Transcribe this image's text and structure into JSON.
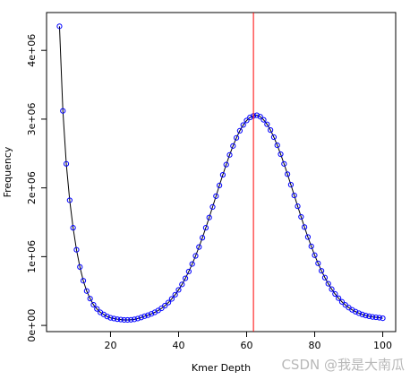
{
  "chart_data": {
    "type": "line",
    "x_label": "Kmer Depth",
    "y_label": "Frequency",
    "watermark": "CSDN @我是大南瓜",
    "x": [
      5,
      6,
      7,
      8,
      9,
      10,
      11,
      12,
      13,
      14,
      15,
      16,
      17,
      18,
      19,
      20,
      21,
      22,
      23,
      24,
      25,
      26,
      27,
      28,
      29,
      30,
      31,
      32,
      33,
      34,
      35,
      36,
      37,
      38,
      39,
      40,
      41,
      42,
      43,
      44,
      45,
      46,
      47,
      48,
      49,
      50,
      51,
      52,
      53,
      54,
      55,
      56,
      57,
      58,
      59,
      60,
      61,
      62,
      63,
      64,
      65,
      66,
      67,
      68,
      69,
      70,
      71,
      72,
      73,
      74,
      75,
      76,
      77,
      78,
      79,
      80,
      81,
      82,
      83,
      84,
      85,
      86,
      87,
      88,
      89,
      90,
      91,
      92,
      93,
      94,
      95,
      96,
      97,
      98,
      99,
      100
    ],
    "series": [
      {
        "color": "#000000",
        "marker_color": "#0000ff",
        "values": [
          4350000,
          3120000,
          2350000,
          1820000,
          1420000,
          1100000,
          850000,
          650000,
          500000,
          390000,
          300000,
          240000,
          190000,
          160000,
          130000,
          110000,
          100000,
          90000,
          85000,
          80000,
          80000,
          82000,
          88000,
          100000,
          115000,
          134000,
          149000,
          168000,
          190000,
          217000,
          249000,
          288000,
          333000,
          386000,
          447000,
          517000,
          596000,
          685000,
          784000,
          893000,
          1011000,
          1140000,
          1275000,
          1420000,
          1569000,
          1723000,
          1880000,
          2036000,
          2190000,
          2339000,
          2480000,
          2610000,
          2728000,
          2831000,
          2915000,
          2980000,
          3025000,
          3047000,
          3057000,
          3035000,
          2990000,
          2925000,
          2841000,
          2738000,
          2620000,
          2490000,
          2349000,
          2200000,
          2046000,
          1890000,
          1733000,
          1579000,
          1430000,
          1285000,
          1150000,
          1021000,
          903000,
          794000,
          695000,
          606000,
          527000,
          457000,
          396000,
          343000,
          298000,
          259000,
          227000,
          200000,
          178000,
          159000,
          144000,
          133000,
          123000,
          118000,
          112000,
          104000
        ]
      }
    ],
    "vline": {
      "x": 62,
      "color": "#ff0000"
    },
    "xlim": [
      1.2,
      103.8
    ],
    "ylim": [
      -90000,
      4550000
    ],
    "xticks": [
      20,
      40,
      60,
      80,
      100
    ],
    "yticks": [
      {
        "value": 0,
        "label": "0e+00"
      },
      {
        "value": 1000000,
        "label": "1e+06"
      },
      {
        "value": 2000000,
        "label": "2e+06"
      },
      {
        "value": 3000000,
        "label": "3e+06"
      },
      {
        "value": 4000000,
        "label": "4e+06"
      }
    ]
  }
}
